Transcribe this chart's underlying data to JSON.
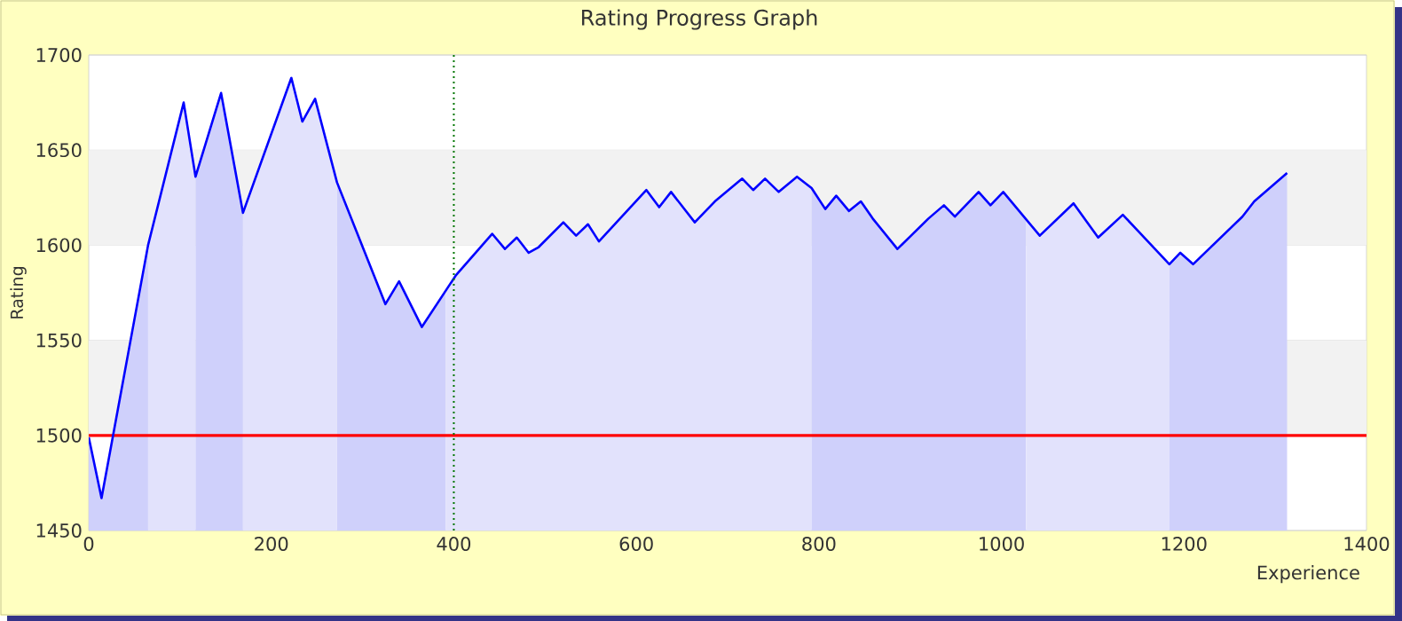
{
  "chart_data": {
    "type": "area",
    "title": "Rating Progress Graph",
    "xlabel": "Experience",
    "ylabel": "Rating",
    "xlim": [
      0,
      1400
    ],
    "xticks": [
      0,
      200,
      400,
      600,
      800,
      1000,
      1200,
      1400
    ],
    "ylim": [
      1450,
      1700
    ],
    "yticks": [
      1450,
      1500,
      1550,
      1600,
      1650,
      1700
    ],
    "grid": "y",
    "series": [
      {
        "color": "#cfd0fb",
        "x": [
          0,
          14,
          65
        ],
        "values": [
          1499,
          1467,
          1600
        ]
      },
      {
        "color": "#e2e2fc",
        "x": [
          65,
          104,
          117
        ],
        "values": [
          1600,
          1675,
          1636
        ]
      },
      {
        "color": "#cfd0fb",
        "x": [
          117,
          145,
          169
        ],
        "values": [
          1636,
          1680,
          1617
        ]
      },
      {
        "color": "#e2e2fc",
        "x": [
          169,
          222,
          234,
          248,
          272
        ],
        "values": [
          1617,
          1688,
          1665,
          1677,
          1633
        ]
      },
      {
        "color": "#cfd0fb",
        "x": [
          272,
          325,
          340,
          365,
          391
        ],
        "values": [
          1633,
          1569,
          1581,
          1557,
          1576
        ]
      },
      {
        "color": "#e2e2fc",
        "x": [
          391,
          402,
          442,
          456,
          469,
          482,
          493,
          520,
          534,
          547,
          559,
          611,
          625,
          638,
          664,
          686,
          716,
          728,
          741,
          756,
          776,
          792
        ],
        "values": [
          1576,
          1584,
          1606,
          1598,
          1604,
          1596,
          1599,
          1612,
          1605,
          1611,
          1602,
          1629,
          1620,
          1628,
          1612,
          1623,
          1635,
          1629,
          1635,
          1628,
          1636,
          1630
        ]
      },
      {
        "color": "#cfd0fb",
        "x": [
          792,
          807,
          819,
          833,
          846,
          859,
          886,
          901,
          920,
          937,
          949,
          975,
          988,
          1002,
          1027
        ],
        "values": [
          1630,
          1619,
          1626,
          1618,
          1623,
          1614,
          1598,
          1605,
          1614,
          1621,
          1615,
          1628,
          1621,
          1628,
          1614
        ]
      },
      {
        "color": "#e2e2fc",
        "x": [
          1027,
          1042,
          1079,
          1106,
          1133,
          1184
        ],
        "values": [
          1614,
          1605,
          1622,
          1604,
          1616,
          1590
        ]
      },
      {
        "color": "#cfd0fb",
        "x": [
          1184,
          1196,
          1210,
          1264,
          1277,
          1313
        ],
        "values": [
          1590,
          1596,
          1590,
          1615,
          1623,
          1638
        ]
      },
      {
        "type": "line",
        "color": "#0000ff",
        "x": [
          0,
          14,
          65,
          104,
          117,
          145,
          169,
          222,
          234,
          248,
          272,
          325,
          340,
          365,
          402,
          442,
          456,
          469,
          482,
          493,
          520,
          534,
          547,
          559,
          611,
          625,
          638,
          664,
          686,
          716,
          728,
          741,
          756,
          776,
          792,
          807,
          819,
          833,
          846,
          859,
          886,
          901,
          920,
          937,
          949,
          975,
          988,
          1002,
          1042,
          1079,
          1106,
          1133,
          1184,
          1196,
          1210,
          1264,
          1277,
          1313
        ],
        "values": [
          1499,
          1467,
          1600,
          1675,
          1636,
          1680,
          1617,
          1688,
          1665,
          1677,
          1633,
          1569,
          1581,
          1557,
          1584,
          1606,
          1598,
          1604,
          1596,
          1599,
          1612,
          1605,
          1611,
          1602,
          1629,
          1620,
          1628,
          1612,
          1623,
          1635,
          1629,
          1635,
          1628,
          1636,
          1630,
          1619,
          1626,
          1618,
          1623,
          1614,
          1598,
          1605,
          1614,
          1621,
          1615,
          1628,
          1621,
          1628,
          1605,
          1622,
          1604,
          1616,
          1590,
          1596,
          1590,
          1615,
          1623,
          1638
        ]
      }
    ],
    "bands": [
      {
        "axis": "y",
        "from": 1500,
        "to": 1550,
        "color": "#f2f2f2"
      },
      {
        "axis": "y",
        "from": 1600,
        "to": 1650,
        "color": "#f2f2f2"
      }
    ],
    "ref_lines": [
      {
        "axis": "y",
        "value": 1500,
        "color": "#ff0000",
        "line_style": "solid"
      },
      {
        "axis": "x",
        "value": 400,
        "color": "#007700",
        "line_style": "dotted"
      }
    ]
  }
}
